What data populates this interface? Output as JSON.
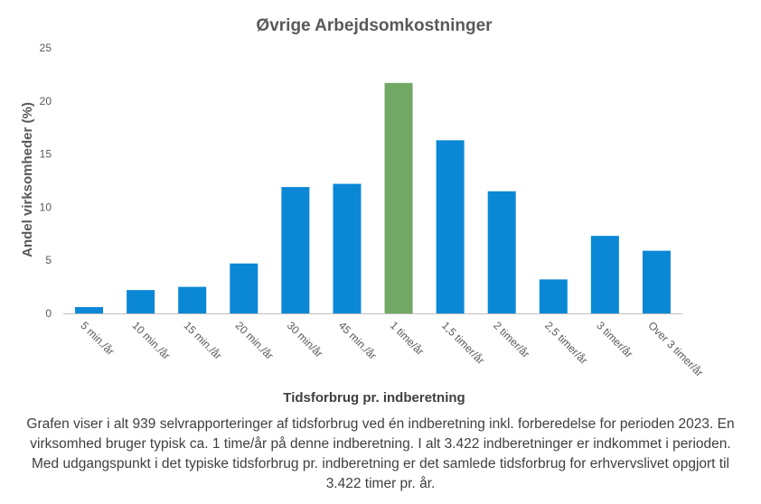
{
  "chart_data": {
    "type": "bar",
    "title": "Øvrige Arbejdsomkostninger",
    "ylabel": "Andel virksomheder  (%)",
    "xlabel": "Tidsforbrug pr. indberetning",
    "categories": [
      "5 min./år",
      "10 min./år",
      "15 min./år",
      "20 min./år",
      "30 min/år",
      "45 min./år",
      "1 time/år",
      "1,5 timer/år",
      "2 timer/år",
      "2,5 timer/år",
      "3 timer/år",
      "Over 3 timer/år"
    ],
    "values": [
      0.6,
      2.2,
      2.5,
      4.7,
      11.9,
      12.2,
      21.7,
      16.3,
      11.5,
      3.2,
      7.3,
      5.9
    ],
    "highlight_index": 6,
    "ylim": [
      0,
      25
    ],
    "yticks": [
      0,
      5,
      10,
      15,
      20,
      25
    ],
    "grid": false,
    "legend": "none",
    "colors": {
      "bar": "#0a88d6",
      "highlight": "#72a866",
      "axis": "#bfbfbf"
    }
  },
  "caption": "Grafen viser i alt 939 selvrapporteringer  af tidsforbrug ved én indberetning inkl. forberedelse  for perioden 2023. En virksomhed bruger typisk ca. 1 time/år på denne indberetning. I alt 3.422 indberetninger  er indkommet i perioden. Med udgangspunkt  i det typiske tidsforbrug pr. indberetning  er det samlede tidsforbrug  for erhvervslivet opgjort til 3.422 timer pr. år."
}
